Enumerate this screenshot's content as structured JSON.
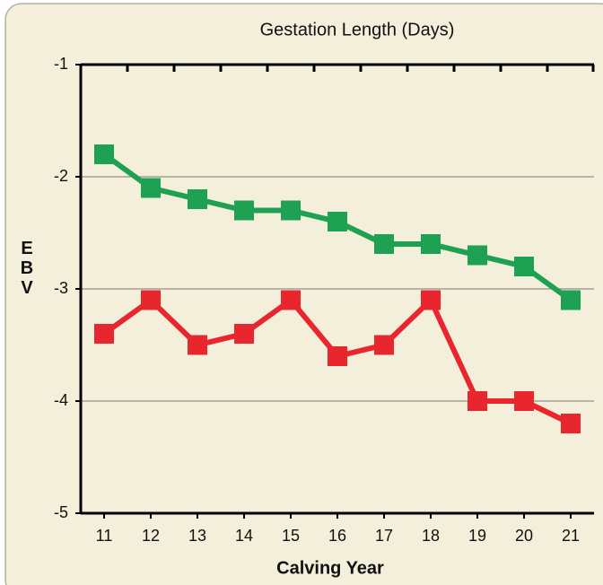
{
  "chart_data": {
    "type": "line",
    "title": "Gestation Length (Days)",
    "x_label": "Calving Year",
    "y_label": "EBV",
    "categories": [
      "11",
      "12",
      "13",
      "14",
      "15",
      "16",
      "17",
      "18",
      "19",
      "20",
      "21"
    ],
    "series": [
      {
        "color": "#1fa154",
        "values": [
          -1.8,
          -2.1,
          -2.2,
          -2.3,
          -2.3,
          -2.4,
          -2.6,
          -2.6,
          -2.7,
          -2.8,
          -3.1
        ]
      },
      {
        "color": "#e8262e",
        "values": [
          -3.4,
          -3.1,
          -3.5,
          -3.4,
          -3.1,
          -3.6,
          -3.5,
          -3.1,
          -4.0,
          -4.0,
          -4.2
        ]
      }
    ],
    "ylim": [
      -5,
      -1
    ],
    "yticks": [
      -5,
      -4,
      -3,
      -2,
      -1
    ],
    "grid": true
  }
}
